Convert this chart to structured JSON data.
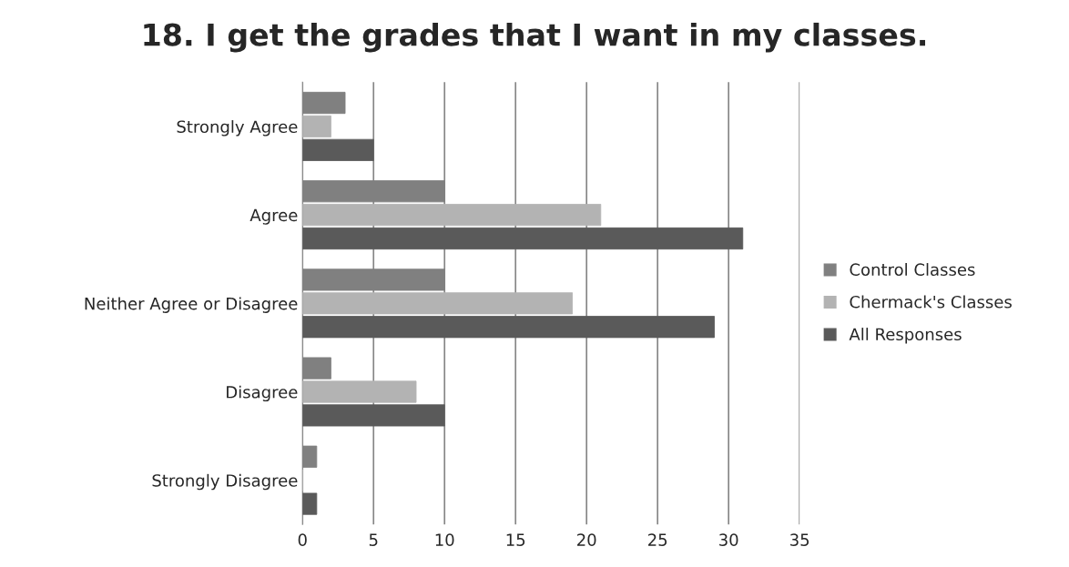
{
  "chart_data": {
    "type": "bar",
    "orientation": "horizontal",
    "title": "18. I get the grades that I want in my classes.",
    "categories": [
      "Strongly Agree",
      "Agree",
      "Neither Agree or Disagree",
      "Disagree",
      "Strongly Disagree"
    ],
    "series": [
      {
        "name": "Control Classes",
        "color": "#808080",
        "values": [
          3,
          10,
          10,
          2,
          1
        ]
      },
      {
        "name": "Chermack's Classes",
        "color": "#b3b3b3",
        "values": [
          2,
          21,
          19,
          8,
          0
        ]
      },
      {
        "name": "All Responses",
        "color": "#5a5a5a",
        "values": [
          5,
          31,
          29,
          10,
          1
        ]
      }
    ],
    "xlim": [
      0,
      35
    ],
    "xticks": [
      0,
      5,
      10,
      15,
      20,
      25,
      30,
      35
    ],
    "grid": "x",
    "legend": "right"
  }
}
